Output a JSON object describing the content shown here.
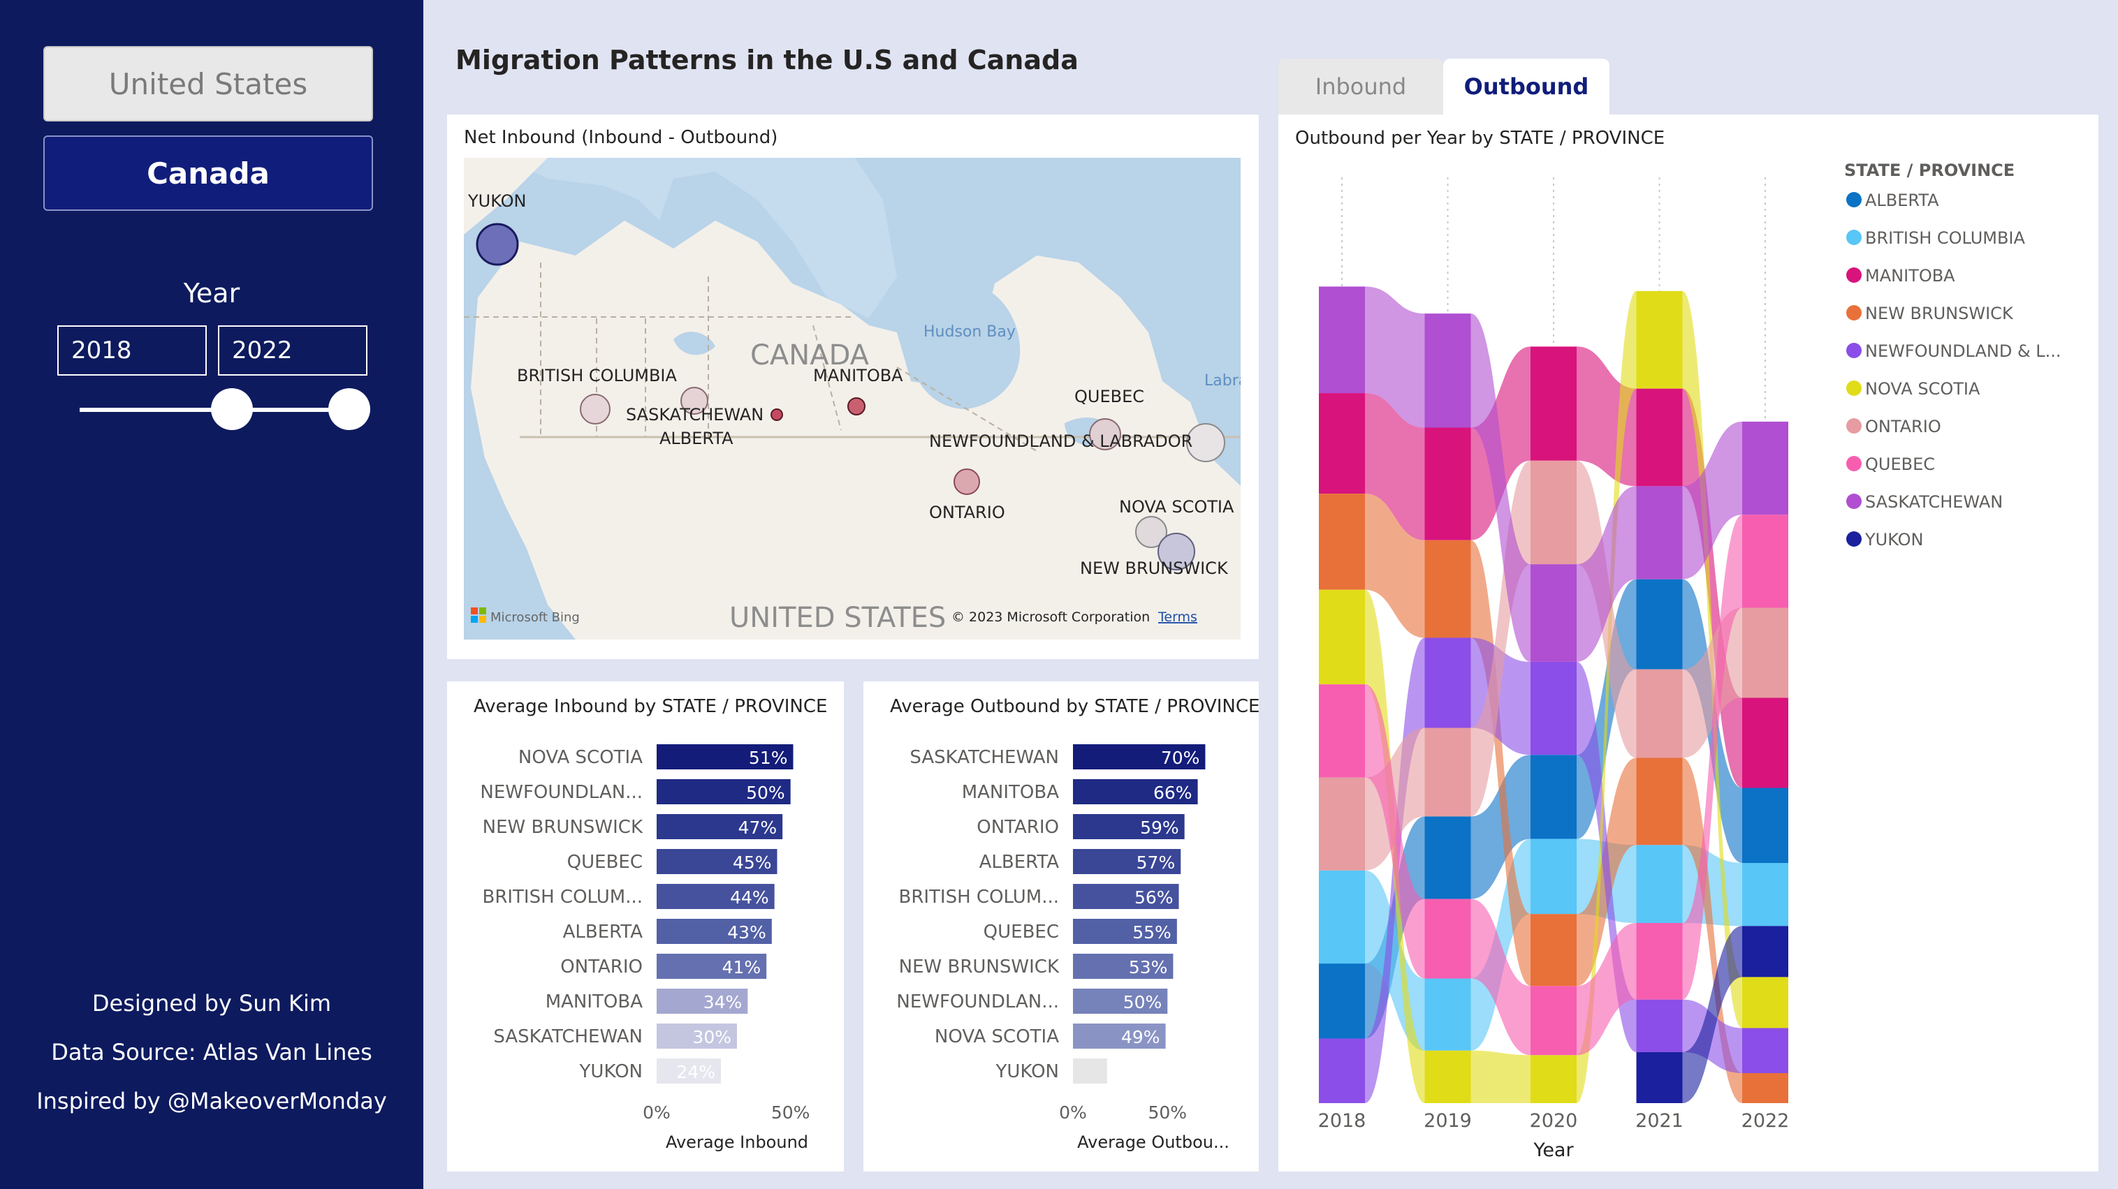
{
  "sidebar": {
    "country_us": "United States",
    "country_ca": "Canada",
    "year_label": "Year",
    "year_from": "2018",
    "year_to": "2022",
    "credit_designer": "Designed by Sun Kim",
    "credit_source": "Data Source: Atlas Van Lines",
    "credit_inspired": "Inspired by @MakeoverMonday"
  },
  "page_title": "Migration Patterns in the U.S and Canada",
  "tabs": {
    "inbound": "Inbound",
    "outbound": "Outbound",
    "selected": "Outbound"
  },
  "map": {
    "title": "Net Inbound (Inbound - Outbound)",
    "labels": {
      "canada": "CANADA",
      "united_states": "UNITED STATES",
      "hudson_bay": "Hudson Bay",
      "labrador": "Labra",
      "yukon": "YUKON",
      "british_columbia": "BRITISH COLUMBIA",
      "saskatchewan": "SASKATCHEWAN",
      "alberta": "ALBERTA",
      "manitoba": "MANITOBA",
      "quebec": "QUEBEC",
      "newfoundland": "NEWFOUNDLAND & LABRADOR",
      "ontario": "ONTARIO",
      "nova_scotia": "NOVA SCOTIA",
      "new_brunswick": "NEW BRUNSWICK"
    },
    "bing": "Microsoft Bing",
    "copyright": "© 2023 Microsoft Corporation",
    "terms": "Terms"
  },
  "ui": {
    "legend_title": "STATE / PROVINCE"
  },
  "chart_data": [
    {
      "type": "bar",
      "orientation": "horizontal",
      "title": "Average Inbound by STATE / PROVINCE",
      "xlabel": "Average Inbound",
      "ylabel": "",
      "categories": [
        "NOVA SCOTIA",
        "NEWFOUNDLAN...",
        "NEW BRUNSWICK",
        "QUEBEC",
        "BRITISH COLUM...",
        "ALBERTA",
        "ONTARIO",
        "MANITOBA",
        "SASKATCHEWAN",
        "YUKON"
      ],
      "values": [
        51,
        50,
        47,
        45,
        44,
        43,
        41,
        34,
        30,
        24
      ],
      "data_labels": [
        "51%",
        "50%",
        "47%",
        "45%",
        "44%",
        "43%",
        "41%",
        "34%",
        "30%",
        "24%"
      ],
      "xticks": [
        "0%",
        "50%"
      ],
      "xlim": [
        0,
        60
      ]
    },
    {
      "type": "bar",
      "orientation": "horizontal",
      "title": "Average Outbound by STATE / PROVINCE",
      "xlabel": "Average Outbou...",
      "ylabel": "",
      "categories": [
        "SASKATCHEWAN",
        "MANITOBA",
        "ONTARIO",
        "ALBERTA",
        "BRITISH COLUM...",
        "QUEBEC",
        "NEW BRUNSWICK",
        "NEWFOUNDLAN...",
        "NOVA SCOTIA",
        "YUKON"
      ],
      "values": [
        70,
        66,
        59,
        57,
        56,
        55,
        53,
        50,
        49,
        18
      ],
      "data_labels": [
        "70%",
        "66%",
        "59%",
        "57%",
        "56%",
        "55%",
        "53%",
        "50%",
        "49%",
        ""
      ],
      "xticks": [
        "0%",
        "50%"
      ],
      "xlim": [
        0,
        85
      ]
    },
    {
      "type": "area",
      "subtype": "ribbon",
      "title": "Outbound per Year by STATE / PROVINCE",
      "xlabel": "Year",
      "ylabel": "",
      "x": [
        "2018",
        "2019",
        "2020",
        "2021",
        "2022"
      ],
      "legend_title": "STATE / PROVINCE",
      "legend_position": "right",
      "series": [
        {
          "name": "ALBERTA",
          "color": "#0b72c6",
          "values": [
            50,
            55,
            56,
            60,
            50
          ]
        },
        {
          "name": "BRITISH COLUMBIA",
          "color": "#58c6f7",
          "values": [
            62,
            48,
            50,
            52,
            42
          ]
        },
        {
          "name": "MANITOBA",
          "color": "#d8137c",
          "values": [
            67,
            75,
            76,
            65,
            60
          ]
        },
        {
          "name": "NEW BRUNSWICK",
          "color": "#e8713a",
          "values": [
            64,
            65,
            48,
            58,
            20
          ]
        },
        {
          "name": "NEWFOUNDLAND & L...",
          "color": "#8b4ee8",
          "values": [
            43,
            60,
            62,
            35,
            30
          ]
        },
        {
          "name": "NOVA SCOTIA",
          "color": "#e1dc18",
          "values": [
            63,
            35,
            32,
            65,
            34
          ]
        },
        {
          "name": "ONTARIO",
          "color": "#e69ca0",
          "values": [
            62,
            59,
            69,
            59,
            60
          ]
        },
        {
          "name": "QUEBEC",
          "color": "#f75eb0",
          "values": [
            62,
            53,
            46,
            51,
            62
          ]
        },
        {
          "name": "SASKATCHEWAN",
          "color": "#b04fd1",
          "values": [
            71,
            76,
            65,
            62,
            62
          ]
        },
        {
          "name": "YUKON",
          "color": "#1a209e",
          "values": [
            0,
            0,
            0,
            34,
            34
          ]
        }
      ]
    }
  ]
}
